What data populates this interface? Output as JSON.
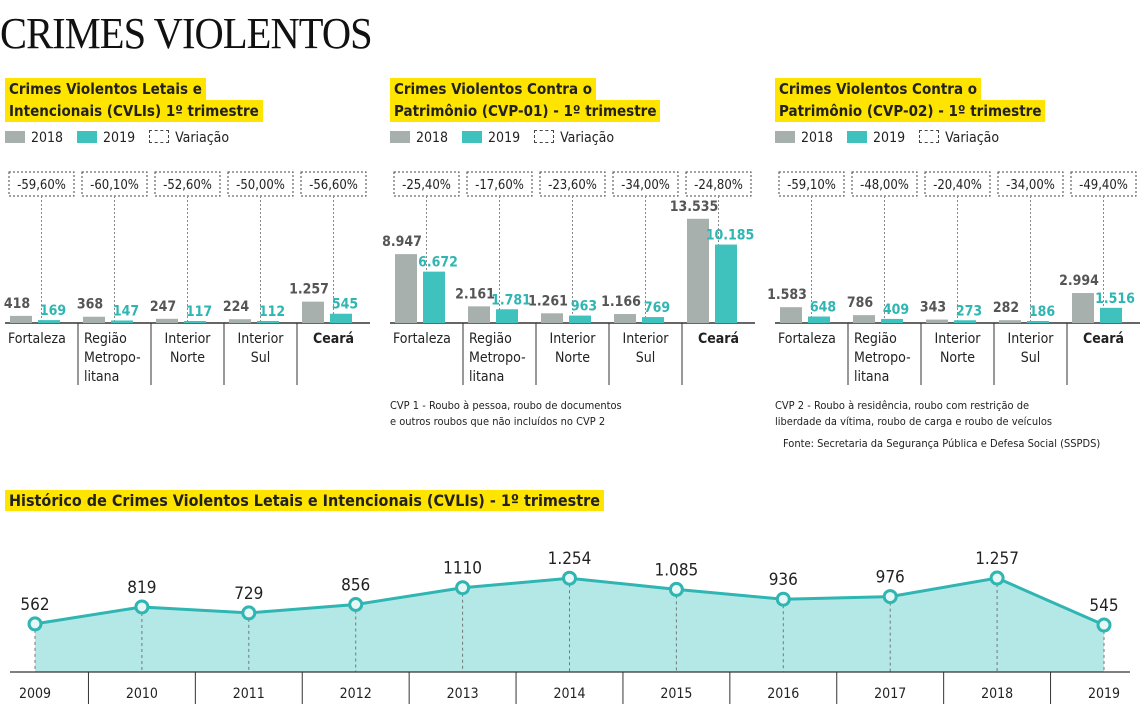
{
  "title": "CRIMES VIOLENTOS",
  "legend": {
    "y2018": "2018",
    "y2019": "2019",
    "variation": "Variação"
  },
  "colors": {
    "y2018": "#a7b0ad",
    "y2019": "#3fc1be",
    "highlight": "#ffe400",
    "area": "#b3e8e6",
    "line": "#2fb5b2"
  },
  "chart_data": [
    {
      "type": "bar",
      "title_lines": [
        "Crimes Violentos Letais e",
        "Intencionais (CVLIs)  1º trimestre"
      ],
      "categories": [
        "Fortaleza",
        "Região|Metropo-|litana",
        "Interior|Norte",
        "Interior|Sul",
        "Ceará"
      ],
      "series": [
        {
          "name": "2018",
          "values": [
            418,
            368,
            247,
            224,
            1257
          ],
          "labels": [
            "418",
            "368",
            "247",
            "224",
            "1.257"
          ]
        },
        {
          "name": "2019",
          "values": [
            169,
            147,
            117,
            112,
            545
          ],
          "labels": [
            "169",
            "147",
            "117",
            "112",
            "545"
          ]
        }
      ],
      "variation": [
        "-59,60%",
        "-60,10%",
        "-52,60%",
        "-50,00%",
        "-56,60%"
      ]
    },
    {
      "type": "bar",
      "title_lines": [
        "Crimes Violentos Contra o",
        "Patrimônio (CVP-01) - 1º trimestre"
      ],
      "categories": [
        "Fortaleza",
        "Região|Metropo-|litana",
        "Interior|Norte",
        "Interior|Sul",
        "Ceará"
      ],
      "series": [
        {
          "name": "2018",
          "values": [
            8947,
            2161,
            1261,
            1166,
            13535
          ],
          "labels": [
            "8.947",
            "2.161",
            "1.261",
            "1.166",
            "13.535"
          ]
        },
        {
          "name": "2019",
          "values": [
            6672,
            1781,
            963,
            769,
            10185
          ],
          "labels": [
            "6.672",
            "1.781",
            "963",
            "769",
            "10.185"
          ]
        }
      ],
      "variation": [
        "-25,40%",
        "-17,60%",
        "-23,60%",
        "-34,00%",
        "-24,80%"
      ],
      "note": [
        "CVP 1 - Roubo à pessoa, roubo de documentos",
        "e outros roubos que não incluídos no CVP 2"
      ]
    },
    {
      "type": "bar",
      "title_lines": [
        "Crimes Violentos Contra o",
        "Patrimônio (CVP-02) - 1º trimestre"
      ],
      "categories": [
        "Fortaleza",
        "Região|Metropo-|litana",
        "Interior|Norte",
        "Interior|Sul",
        "Ceará"
      ],
      "series": [
        {
          "name": "2018",
          "values": [
            1583,
            786,
            343,
            282,
            2994
          ],
          "labels": [
            "1.583",
            "786",
            "343",
            "282",
            "2.994"
          ]
        },
        {
          "name": "2019",
          "values": [
            648,
            409,
            273,
            186,
            1516
          ],
          "labels": [
            "648",
            "409",
            "273",
            "186",
            "1.516"
          ]
        }
      ],
      "variation": [
        "-59,10%",
        "-48,00%",
        "-20,40%",
        "-34,00%",
        "-49,40%"
      ],
      "note": [
        "CVP 2 - Roubo à residência, roubo com restrição de",
        "liberdade da vítima, roubo de carga e roubo de veículos"
      ]
    },
    {
      "type": "area",
      "title": "Histórico de Crimes Violentos Letais e Intencionais (CVLIs) - 1º trimestre",
      "x": [
        "2009",
        "2010",
        "2011",
        "2012",
        "2013",
        "2014",
        "2015",
        "2016",
        "2017",
        "2018",
        "2019"
      ],
      "values": [
        562,
        819,
        729,
        856,
        1110,
        1254,
        1085,
        936,
        976,
        1257,
        545
      ],
      "labels": [
        "562",
        "819",
        "729",
        "856",
        "1110",
        "1.254",
        "1.085",
        "936",
        "976",
        "1.257",
        "545"
      ]
    }
  ],
  "source": "Fonte: Secretaria da Segurança Pública e Defesa Social (SSPDS)"
}
